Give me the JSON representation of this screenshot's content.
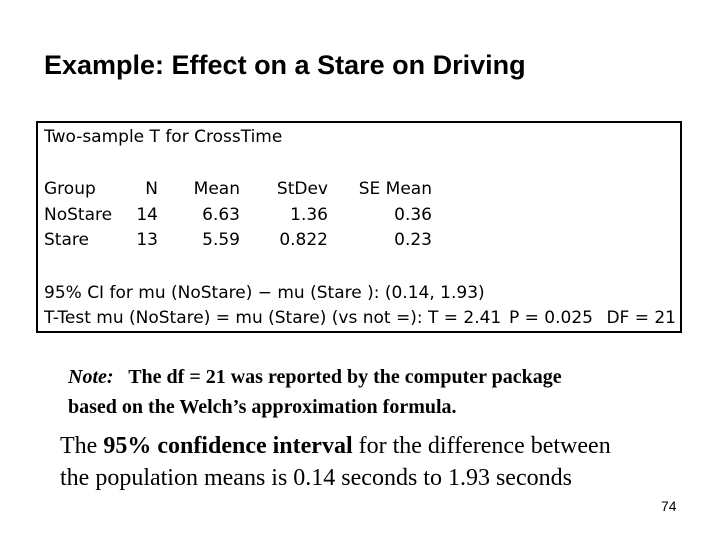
{
  "slide": {
    "title": "Example: Effect on a Stare on Driving",
    "page_number": "74"
  },
  "output": {
    "title": "Two-sample T for CrossTime",
    "headers": {
      "group": "Group",
      "n": "N",
      "mean": "Mean",
      "stdev": "StDev",
      "se_mean": "SE Mean"
    },
    "rows": [
      {
        "group": "NoStare",
        "n": "14",
        "mean": "6.63",
        "stdev": "1.36",
        "se_mean": "0.36"
      },
      {
        "group": "Stare",
        "n": "13",
        "mean": "5.59",
        "stdev": "0.822",
        "se_mean": "0.23"
      }
    ],
    "ci_line": "95% CI for mu (NoStare) − mu (Stare ): (0.14, 1.93)",
    "ttest_main": "T-Test mu (NoStare) = mu (Stare) (vs not =): T = 2.41",
    "p_value": "P = 0.025",
    "df": "DF = 21"
  },
  "note": {
    "label": "Note",
    "line1_rest": "The df = 21 was reported by the computer package",
    "line2": "based on the Welch’s approximation formula."
  },
  "conclusion": {
    "part1": "The ",
    "bold1": "95% confidence",
    "part2": " ",
    "bold2": "interval",
    "part3": " for the difference between",
    "line2": "the population means is 0.14 seconds to 1.93 seconds"
  }
}
